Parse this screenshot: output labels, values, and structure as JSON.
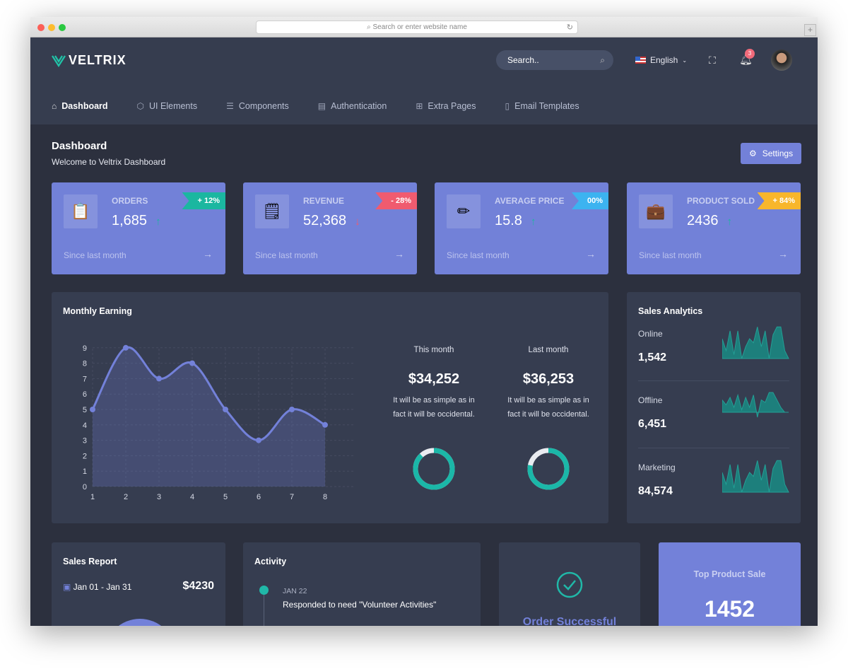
{
  "browser": {
    "url_placeholder": "Search or enter website name"
  },
  "header": {
    "brand": "VELTRIX",
    "search_placeholder": "Search..",
    "language": "English",
    "notification_count": "3"
  },
  "nav": [
    {
      "label": "Dashboard",
      "icon": "home-icon",
      "active": true
    },
    {
      "label": "UI Elements",
      "icon": "cube-icon"
    },
    {
      "label": "Components",
      "icon": "layers-icon"
    },
    {
      "label": "Authentication",
      "icon": "archive-icon"
    },
    {
      "label": "Extra Pages",
      "icon": "file-plus-icon"
    },
    {
      "label": "Email Templates",
      "icon": "bookmark-icon"
    }
  ],
  "page": {
    "title": "Dashboard",
    "subtitle": "Welcome to Veltrix Dashboard",
    "settings_label": "Settings"
  },
  "stats": [
    {
      "label": "ORDERS",
      "value": "1,685",
      "badge": "+ 12%",
      "badge_color": "#1bb7a0",
      "trend": "up",
      "footer": "Since last month",
      "icon": "orders-icon"
    },
    {
      "label": "REVENUE",
      "value": "52,368",
      "badge": "- 28%",
      "badge_color": "#f05b6f",
      "trend": "down",
      "footer": "Since last month",
      "icon": "sticky-notes-icon"
    },
    {
      "label": "AVERAGE PRICE",
      "value": "15.8",
      "badge": "00%",
      "badge_color": "#3cb3f0",
      "trend": "up",
      "footer": "Since last month",
      "icon": "pencil-icon"
    },
    {
      "label": "PRODUCT SOLD",
      "value": "2436",
      "badge": "+ 84%",
      "badge_color": "#f8b62b",
      "trend": "up",
      "footer": "Since last month",
      "icon": "briefcase-icon"
    }
  ],
  "monthly": {
    "title": "Monthly Earning",
    "this_month": {
      "label": "This month",
      "value": "$34,252",
      "desc1": "It will be as simple as in",
      "desc2": "fact it will be occidental.",
      "percent": 88
    },
    "last_month": {
      "label": "Last month",
      "value": "$36,253",
      "desc1": "It will be as simple as in",
      "desc2": "fact it will be occidental.",
      "percent": 78
    }
  },
  "chart_data": {
    "type": "area",
    "x": [
      1,
      2,
      3,
      4,
      5,
      6,
      7,
      8
    ],
    "values": [
      5,
      9,
      7,
      8,
      5,
      3,
      5,
      4
    ],
    "yticks": [
      "0",
      "1",
      "2",
      "3",
      "4",
      "5",
      "6",
      "7",
      "8",
      "9"
    ],
    "xticks": [
      "1",
      "2",
      "3",
      "4",
      "5",
      "6",
      "7",
      "8"
    ],
    "ylim": [
      0,
      9
    ],
    "grid": true,
    "color": "#7381d9"
  },
  "analytics": {
    "title": "Sales Analytics",
    "items": [
      {
        "label": "Online",
        "value": "1,542",
        "spark": [
          5,
          2,
          7,
          1,
          7,
          0,
          3,
          5,
          4,
          8,
          3,
          7,
          0,
          6,
          8,
          8,
          2,
          0
        ]
      },
      {
        "label": "Offline",
        "value": "6,451",
        "spark": [
          5,
          3,
          6,
          2,
          7,
          1,
          6,
          2,
          7,
          -2,
          5,
          4,
          8,
          8,
          5,
          2,
          0,
          0
        ]
      },
      {
        "label": "Marketing",
        "value": "84,574",
        "spark": [
          5,
          2,
          7,
          1,
          7,
          0,
          3,
          5,
          4,
          8,
          3,
          7,
          0,
          6,
          8,
          8,
          2,
          0
        ]
      }
    ]
  },
  "sales_report": {
    "title": "Sales Report",
    "range": "Jan 01 - Jan 31",
    "value": "$4230"
  },
  "activity": {
    "title": "Activity",
    "items": [
      {
        "date": "JAN 22",
        "text": "Responded to need \"Volunteer Activities\""
      }
    ]
  },
  "order": {
    "title": "Order Successful"
  },
  "top_product": {
    "label": "Top Product Sale",
    "value": "1452"
  }
}
